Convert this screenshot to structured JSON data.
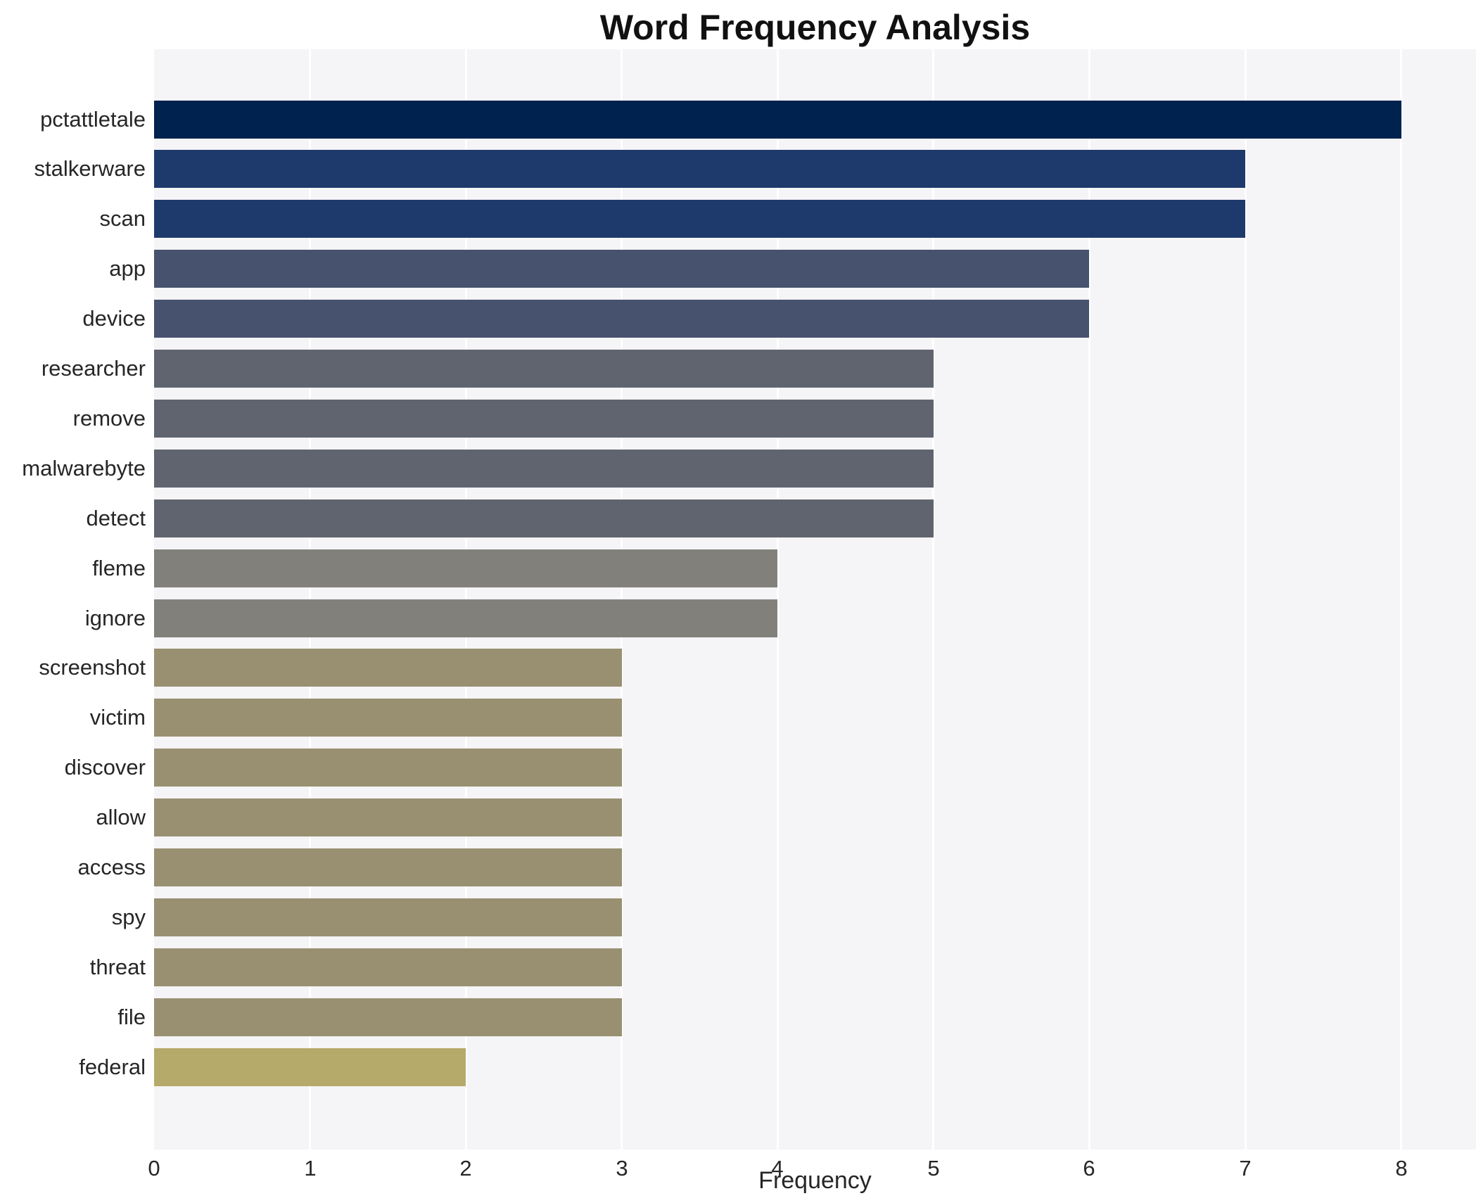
{
  "chart_data": {
    "type": "bar",
    "orientation": "horizontal",
    "title": "Word Frequency Analysis",
    "xlabel": "Frequency",
    "ylabel": "",
    "categories": [
      "pctattletale",
      "stalkerware",
      "scan",
      "app",
      "device",
      "researcher",
      "remove",
      "malwarebyte",
      "detect",
      "fleme",
      "ignore",
      "screenshot",
      "victim",
      "discover",
      "allow",
      "access",
      "spy",
      "threat",
      "file",
      "federal"
    ],
    "values": [
      8,
      7,
      7,
      6,
      6,
      5,
      5,
      5,
      5,
      4,
      4,
      3,
      3,
      3,
      3,
      3,
      3,
      3,
      3,
      2
    ],
    "xlim": [
      0,
      8.48
    ],
    "xticks": [
      0,
      1,
      2,
      3,
      4,
      5,
      6,
      7,
      8
    ],
    "grid": true,
    "legend": false,
    "gridline_color": "#ffffff",
    "plot_bg_color": "#f5f4f6",
    "title_color": "#111111",
    "label_color": "#262626",
    "palette_by_value": {
      "8": "#00224e",
      "7": "#1e3a6d",
      "6": "#47526e",
      "5": "#60646f",
      "4": "#81807b",
      "3": "#989070",
      "2": "#b5aa69"
    }
  }
}
